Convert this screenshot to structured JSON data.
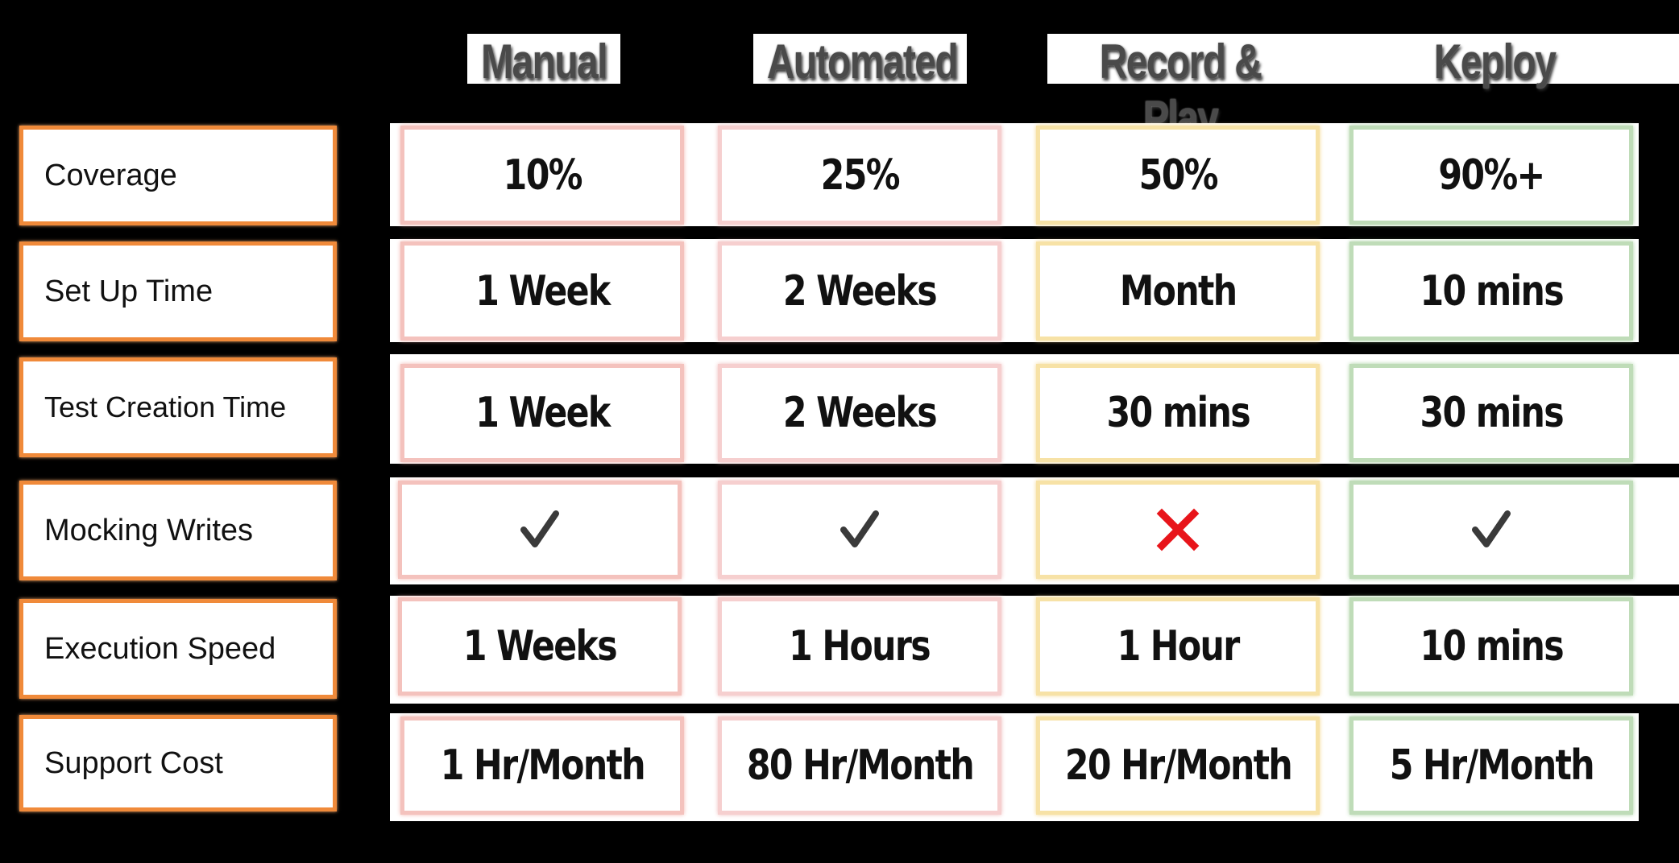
{
  "columns": [
    "Manual",
    "Automated",
    "Record & Play",
    "Keploy"
  ],
  "rows": [
    {
      "label": "Coverage",
      "values": [
        "10%",
        "25%",
        "50%",
        "90%+"
      ]
    },
    {
      "label": "Set Up Time",
      "values": [
        "1 Week",
        "2 Weeks",
        "Month",
        "10 mins"
      ]
    },
    {
      "label": "Test Creation Time",
      "values": [
        "1 Week",
        "2 Weeks",
        "30 mins",
        "30 mins"
      ]
    },
    {
      "label": "Mocking Writes",
      "icons": [
        "check-icon",
        "check-icon",
        "cross-icon",
        "check-icon"
      ]
    },
    {
      "label": "Execution Speed",
      "values": [
        "1 Weeks",
        "1 Hours",
        "1 Hour",
        "10 mins"
      ]
    },
    {
      "label": "Support Cost",
      "values": [
        "1 Hr/Month",
        "80 Hr/Month",
        "20 Hr/Month",
        "5 Hr/Month"
      ]
    }
  ],
  "colors": {
    "background": "#000000",
    "label_border": "#f08a3a",
    "manual_border": "#f4c2bd",
    "automated_border": "#f6cfcf",
    "record_play_border": "#f7e2a6",
    "keploy_border": "#bfdcb8",
    "check": "#3a3a3a",
    "cross": "#e8141a"
  }
}
